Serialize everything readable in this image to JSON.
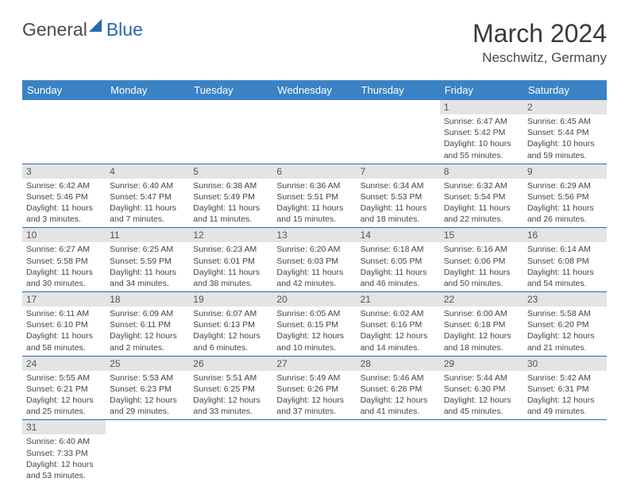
{
  "logo": {
    "general": "General",
    "blue": "Blue"
  },
  "title": "March 2024",
  "location": "Neschwitz, Germany",
  "colors": {
    "header_bg": "#3b82c4",
    "header_text": "#ffffff",
    "daynum_bg": "#e4e4e4",
    "border": "#2968b0",
    "logo_blue": "#2968b0"
  },
  "day_headers": [
    "Sunday",
    "Monday",
    "Tuesday",
    "Wednesday",
    "Thursday",
    "Friday",
    "Saturday"
  ],
  "weeks": [
    [
      null,
      null,
      null,
      null,
      null,
      {
        "n": "1",
        "sr": "Sunrise: 6:47 AM",
        "ss": "Sunset: 5:42 PM",
        "d1": "Daylight: 10 hours",
        "d2": "and 55 minutes."
      },
      {
        "n": "2",
        "sr": "Sunrise: 6:45 AM",
        "ss": "Sunset: 5:44 PM",
        "d1": "Daylight: 10 hours",
        "d2": "and 59 minutes."
      }
    ],
    [
      {
        "n": "3",
        "sr": "Sunrise: 6:42 AM",
        "ss": "Sunset: 5:46 PM",
        "d1": "Daylight: 11 hours",
        "d2": "and 3 minutes."
      },
      {
        "n": "4",
        "sr": "Sunrise: 6:40 AM",
        "ss": "Sunset: 5:47 PM",
        "d1": "Daylight: 11 hours",
        "d2": "and 7 minutes."
      },
      {
        "n": "5",
        "sr": "Sunrise: 6:38 AM",
        "ss": "Sunset: 5:49 PM",
        "d1": "Daylight: 11 hours",
        "d2": "and 11 minutes."
      },
      {
        "n": "6",
        "sr": "Sunrise: 6:36 AM",
        "ss": "Sunset: 5:51 PM",
        "d1": "Daylight: 11 hours",
        "d2": "and 15 minutes."
      },
      {
        "n": "7",
        "sr": "Sunrise: 6:34 AM",
        "ss": "Sunset: 5:53 PM",
        "d1": "Daylight: 11 hours",
        "d2": "and 18 minutes."
      },
      {
        "n": "8",
        "sr": "Sunrise: 6:32 AM",
        "ss": "Sunset: 5:54 PM",
        "d1": "Daylight: 11 hours",
        "d2": "and 22 minutes."
      },
      {
        "n": "9",
        "sr": "Sunrise: 6:29 AM",
        "ss": "Sunset: 5:56 PM",
        "d1": "Daylight: 11 hours",
        "d2": "and 26 minutes."
      }
    ],
    [
      {
        "n": "10",
        "sr": "Sunrise: 6:27 AM",
        "ss": "Sunset: 5:58 PM",
        "d1": "Daylight: 11 hours",
        "d2": "and 30 minutes."
      },
      {
        "n": "11",
        "sr": "Sunrise: 6:25 AM",
        "ss": "Sunset: 5:59 PM",
        "d1": "Daylight: 11 hours",
        "d2": "and 34 minutes."
      },
      {
        "n": "12",
        "sr": "Sunrise: 6:23 AM",
        "ss": "Sunset: 6:01 PM",
        "d1": "Daylight: 11 hours",
        "d2": "and 38 minutes."
      },
      {
        "n": "13",
        "sr": "Sunrise: 6:20 AM",
        "ss": "Sunset: 6:03 PM",
        "d1": "Daylight: 11 hours",
        "d2": "and 42 minutes."
      },
      {
        "n": "14",
        "sr": "Sunrise: 6:18 AM",
        "ss": "Sunset: 6:05 PM",
        "d1": "Daylight: 11 hours",
        "d2": "and 46 minutes."
      },
      {
        "n": "15",
        "sr": "Sunrise: 6:16 AM",
        "ss": "Sunset: 6:06 PM",
        "d1": "Daylight: 11 hours",
        "d2": "and 50 minutes."
      },
      {
        "n": "16",
        "sr": "Sunrise: 6:14 AM",
        "ss": "Sunset: 6:08 PM",
        "d1": "Daylight: 11 hours",
        "d2": "and 54 minutes."
      }
    ],
    [
      {
        "n": "17",
        "sr": "Sunrise: 6:11 AM",
        "ss": "Sunset: 6:10 PM",
        "d1": "Daylight: 11 hours",
        "d2": "and 58 minutes."
      },
      {
        "n": "18",
        "sr": "Sunrise: 6:09 AM",
        "ss": "Sunset: 6:11 PM",
        "d1": "Daylight: 12 hours",
        "d2": "and 2 minutes."
      },
      {
        "n": "19",
        "sr": "Sunrise: 6:07 AM",
        "ss": "Sunset: 6:13 PM",
        "d1": "Daylight: 12 hours",
        "d2": "and 6 minutes."
      },
      {
        "n": "20",
        "sr": "Sunrise: 6:05 AM",
        "ss": "Sunset: 6:15 PM",
        "d1": "Daylight: 12 hours",
        "d2": "and 10 minutes."
      },
      {
        "n": "21",
        "sr": "Sunrise: 6:02 AM",
        "ss": "Sunset: 6:16 PM",
        "d1": "Daylight: 12 hours",
        "d2": "and 14 minutes."
      },
      {
        "n": "22",
        "sr": "Sunrise: 6:00 AM",
        "ss": "Sunset: 6:18 PM",
        "d1": "Daylight: 12 hours",
        "d2": "and 18 minutes."
      },
      {
        "n": "23",
        "sr": "Sunrise: 5:58 AM",
        "ss": "Sunset: 6:20 PM",
        "d1": "Daylight: 12 hours",
        "d2": "and 21 minutes."
      }
    ],
    [
      {
        "n": "24",
        "sr": "Sunrise: 5:55 AM",
        "ss": "Sunset: 6:21 PM",
        "d1": "Daylight: 12 hours",
        "d2": "and 25 minutes."
      },
      {
        "n": "25",
        "sr": "Sunrise: 5:53 AM",
        "ss": "Sunset: 6:23 PM",
        "d1": "Daylight: 12 hours",
        "d2": "and 29 minutes."
      },
      {
        "n": "26",
        "sr": "Sunrise: 5:51 AM",
        "ss": "Sunset: 6:25 PM",
        "d1": "Daylight: 12 hours",
        "d2": "and 33 minutes."
      },
      {
        "n": "27",
        "sr": "Sunrise: 5:49 AM",
        "ss": "Sunset: 6:26 PM",
        "d1": "Daylight: 12 hours",
        "d2": "and 37 minutes."
      },
      {
        "n": "28",
        "sr": "Sunrise: 5:46 AM",
        "ss": "Sunset: 6:28 PM",
        "d1": "Daylight: 12 hours",
        "d2": "and 41 minutes."
      },
      {
        "n": "29",
        "sr": "Sunrise: 5:44 AM",
        "ss": "Sunset: 6:30 PM",
        "d1": "Daylight: 12 hours",
        "d2": "and 45 minutes."
      },
      {
        "n": "30",
        "sr": "Sunrise: 5:42 AM",
        "ss": "Sunset: 6:31 PM",
        "d1": "Daylight: 12 hours",
        "d2": "and 49 minutes."
      }
    ],
    [
      {
        "n": "31",
        "sr": "Sunrise: 6:40 AM",
        "ss": "Sunset: 7:33 PM",
        "d1": "Daylight: 12 hours",
        "d2": "and 53 minutes."
      },
      null,
      null,
      null,
      null,
      null,
      null
    ]
  ]
}
